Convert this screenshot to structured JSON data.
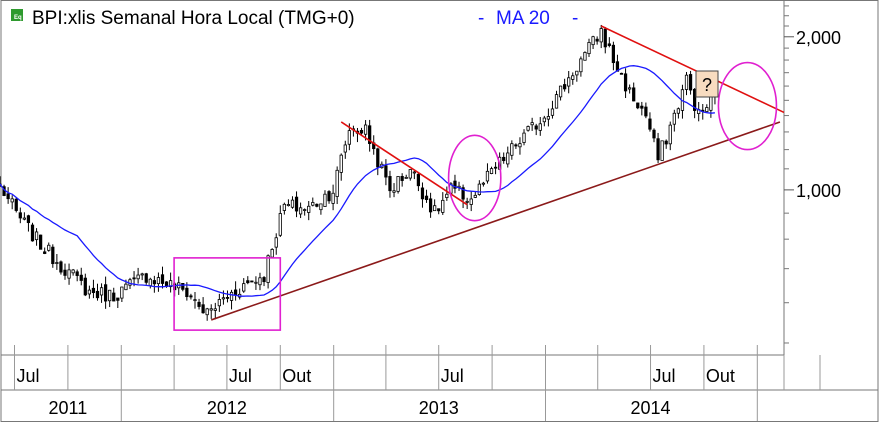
{
  "header": {
    "title": "BPI:xlis Semanal Hora Local (TMG+0)",
    "separator": "-",
    "indicator": "MA 20",
    "indicator_trail": "-",
    "icon": "chart-settings-icon"
  },
  "annotation": {
    "question_label": "?"
  },
  "colors": {
    "candle_up_fill": "#ffffff",
    "candle_down_fill": "#000000",
    "ma_line": "#1a1aff",
    "resistance_line": "#e01010",
    "support_line": "#8b1a1a",
    "highlight": "#e020d0",
    "question_box_fill": "#f8dcc0",
    "question_box_border": "#444444",
    "grid": "#999999",
    "icon_green": "#2e9a2e",
    "header_text": "#000000",
    "ma_text": "#1a1aff"
  },
  "chart_data": {
    "type": "candlestick",
    "title": "BPI:xlis Semanal Hora Local (TMG+0)",
    "frequency": "weekly",
    "y_scale": "log",
    "ylim": [
      480,
      2320
    ],
    "y_ticks": [
      1000,
      2000
    ],
    "y_tick_labels": [
      "1,000",
      "2,000"
    ],
    "x_range": [
      "2011-06-06",
      "2015-02-16"
    ],
    "x_tick_labels_month": [
      {
        "date": "2011-07-01",
        "label": "Jul"
      },
      {
        "date": "2012-07-01",
        "label": "Jul"
      },
      {
        "date": "2012-10-01",
        "label": "Out"
      },
      {
        "date": "2013-07-01",
        "label": "Jul"
      },
      {
        "date": "2014-07-01",
        "label": "Jul"
      },
      {
        "date": "2014-10-01",
        "label": "Out"
      }
    ],
    "x_tick_labels_year": [
      {
        "date": "2011-10-01",
        "label": "2011"
      },
      {
        "date": "2012-07-01",
        "label": "2012"
      },
      {
        "date": "2013-07-01",
        "label": "2013"
      },
      {
        "date": "2014-07-01",
        "label": "2014"
      }
    ],
    "moving_average": {
      "name": "MA 20",
      "period": 20
    },
    "close_anchors": [
      {
        "date": "2011-06-06",
        "close": 1020
      },
      {
        "date": "2011-07-04",
        "close": 900
      },
      {
        "date": "2011-08-15",
        "close": 780
      },
      {
        "date": "2011-09-26",
        "close": 700
      },
      {
        "date": "2011-11-07",
        "close": 630
      },
      {
        "date": "2011-12-19",
        "close": 620
      },
      {
        "date": "2012-02-13",
        "close": 680
      },
      {
        "date": "2012-03-12",
        "close": 660
      },
      {
        "date": "2012-04-23",
        "close": 630
      },
      {
        "date": "2012-05-28",
        "close": 570
      },
      {
        "date": "2012-06-25",
        "close": 610
      },
      {
        "date": "2012-07-30",
        "close": 650
      },
      {
        "date": "2012-09-03",
        "close": 680
      },
      {
        "date": "2012-09-17",
        "close": 780
      },
      {
        "date": "2012-10-08",
        "close": 930
      },
      {
        "date": "2012-11-19",
        "close": 920
      },
      {
        "date": "2012-12-31",
        "close": 1000
      },
      {
        "date": "2013-01-28",
        "close": 1320
      },
      {
        "date": "2013-02-25",
        "close": 1310
      },
      {
        "date": "2013-04-08",
        "close": 1000
      },
      {
        "date": "2013-05-13",
        "close": 1100
      },
      {
        "date": "2013-06-24",
        "close": 900
      },
      {
        "date": "2013-07-22",
        "close": 1000
      },
      {
        "date": "2013-08-26",
        "close": 960
      },
      {
        "date": "2013-09-30",
        "close": 1080
      },
      {
        "date": "2013-11-04",
        "close": 1200
      },
      {
        "date": "2013-12-30",
        "close": 1400
      },
      {
        "date": "2014-02-24",
        "close": 1750
      },
      {
        "date": "2014-04-07",
        "close": 2050
      },
      {
        "date": "2014-04-28",
        "close": 1800
      },
      {
        "date": "2014-05-26",
        "close": 1550
      },
      {
        "date": "2014-06-23",
        "close": 1400
      },
      {
        "date": "2014-07-14",
        "close": 1150
      },
      {
        "date": "2014-08-11",
        "close": 1400
      },
      {
        "date": "2014-09-01",
        "close": 1650
      },
      {
        "date": "2014-09-22",
        "close": 1400
      },
      {
        "date": "2014-10-20",
        "close": 1520
      }
    ],
    "trendlines": [
      {
        "name": "support",
        "points": [
          {
            "date": "2012-06-04",
            "value": 555
          },
          {
            "date": "2015-02-09",
            "value": 1360
          }
        ]
      },
      {
        "name": "resistance-2013",
        "points": [
          {
            "date": "2013-01-14",
            "value": 1360
          },
          {
            "date": "2013-08-19",
            "value": 935
          }
        ]
      },
      {
        "name": "resistance-2014",
        "points": [
          {
            "date": "2014-04-07",
            "value": 2100
          },
          {
            "date": "2015-02-16",
            "value": 1420
          }
        ]
      }
    ],
    "highlight_regions": [
      {
        "shape": "rectangle",
        "x": [
          "2012-04-01",
          "2012-10-01"
        ],
        "y": [
          530,
          735
        ]
      },
      {
        "shape": "ellipse",
        "center": {
          "date": "2013-09-01",
          "value": 1050
        },
        "half_width_days": 45,
        "y": [
          870,
          1280
        ]
      },
      {
        "shape": "ellipse",
        "center": {
          "date": "2014-12-15",
          "value": 1460
        },
        "half_width_days": 50,
        "y": [
          1200,
          1780
        ]
      }
    ]
  }
}
